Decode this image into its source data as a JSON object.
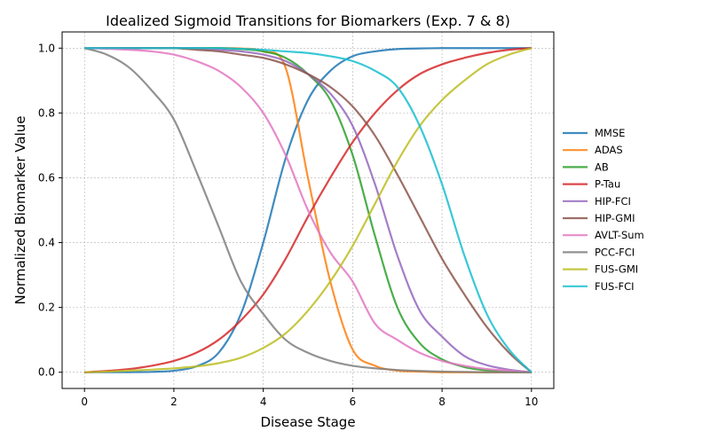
{
  "chart_data": {
    "type": "line",
    "title": "Idealized Sigmoid Transitions for Biomarkers (Exp. 7 & 8)",
    "xlabel": "Disease Stage",
    "ylabel": "Normalized Biomarker Value",
    "xlim": [
      -0.5,
      10.5
    ],
    "ylim": [
      -0.05,
      1.05
    ],
    "xticks": [
      0,
      2,
      4,
      6,
      8,
      10
    ],
    "xtick_labels": [
      "0",
      "2",
      "4",
      "6",
      "8",
      "10"
    ],
    "yticks": [
      0.0,
      0.2,
      0.4,
      0.6,
      0.8,
      1.0
    ],
    "ytick_labels": [
      "0.0",
      "0.2",
      "0.4",
      "0.6",
      "0.8",
      "1.0"
    ],
    "grid": true,
    "legend_position": "right",
    "x": [
      0,
      0.5,
      1,
      1.5,
      2,
      2.5,
      3,
      3.5,
      4,
      4.5,
      5,
      5.5,
      6,
      6.5,
      7,
      7.5,
      8,
      8.5,
      9,
      9.5,
      10
    ],
    "series": [
      {
        "name": "MMSE",
        "color": "#1f77b4",
        "values": [
          0.0,
          0.0001,
          0.0003,
          0.0012,
          0.0046,
          0.018,
          0.06,
          0.18,
          0.4,
          0.66,
          0.84,
          0.93,
          0.975,
          0.99,
          0.997,
          0.999,
          1.0,
          1.0,
          1.0,
          1.0,
          1.0
        ]
      },
      {
        "name": "ADAS",
        "color": "#ff7f0e",
        "values": [
          1.0,
          1.0,
          1.0,
          1.0,
          1.0,
          1.0,
          1.0,
          0.999,
          0.99,
          0.94,
          0.6,
          0.28,
          0.07,
          0.02,
          0.005,
          0.002,
          0.0,
          0.0,
          0.0,
          0.0,
          0.0
        ]
      },
      {
        "name": "AB",
        "color": "#2ca02c",
        "values": [
          1.0,
          1.0,
          1.0,
          1.0,
          1.0,
          1.0,
          1.0,
          0.997,
          0.99,
          0.97,
          0.92,
          0.84,
          0.67,
          0.42,
          0.2,
          0.09,
          0.04,
          0.016,
          0.006,
          0.002,
          0.0
        ]
      },
      {
        "name": "P-Tau",
        "color": "#d62728",
        "values": [
          0.0,
          0.004,
          0.01,
          0.02,
          0.035,
          0.06,
          0.1,
          0.16,
          0.24,
          0.35,
          0.48,
          0.6,
          0.71,
          0.8,
          0.87,
          0.92,
          0.95,
          0.97,
          0.985,
          0.995,
          1.0
        ]
      },
      {
        "name": "HIP-FCI",
        "color": "#9467bd",
        "values": [
          1.0,
          1.0,
          1.0,
          1.0,
          1.0,
          1.0,
          0.995,
          0.99,
          0.98,
          0.96,
          0.92,
          0.86,
          0.76,
          0.58,
          0.36,
          0.19,
          0.11,
          0.05,
          0.022,
          0.008,
          0.0
        ]
      },
      {
        "name": "HIP-GMI",
        "color": "#8c564b",
        "values": [
          1.0,
          1.0,
          1.0,
          1.0,
          1.0,
          0.995,
          0.99,
          0.98,
          0.97,
          0.95,
          0.92,
          0.88,
          0.82,
          0.73,
          0.61,
          0.48,
          0.35,
          0.24,
          0.14,
          0.06,
          0.0
        ]
      },
      {
        "name": "AVLT-Sum",
        "color": "#e377c2",
        "values": [
          1.0,
          0.998,
          0.995,
          0.99,
          0.98,
          0.96,
          0.93,
          0.88,
          0.8,
          0.67,
          0.5,
          0.37,
          0.28,
          0.15,
          0.1,
          0.06,
          0.035,
          0.02,
          0.01,
          0.005,
          0.0
        ]
      },
      {
        "name": "PCC-FCI",
        "color": "#7f7f7f",
        "values": [
          1.0,
          0.98,
          0.94,
          0.87,
          0.78,
          0.62,
          0.45,
          0.28,
          0.18,
          0.1,
          0.06,
          0.035,
          0.02,
          0.012,
          0.007,
          0.004,
          0.002,
          0.001,
          0.0,
          0.0,
          0.0
        ]
      },
      {
        "name": "FUS-GMI",
        "color": "#bcbd22",
        "values": [
          0.0,
          0.002,
          0.005,
          0.008,
          0.012,
          0.018,
          0.028,
          0.045,
          0.075,
          0.12,
          0.19,
          0.28,
          0.39,
          0.52,
          0.65,
          0.76,
          0.84,
          0.9,
          0.95,
          0.98,
          1.0
        ]
      },
      {
        "name": "FUS-FCI",
        "color": "#17becf",
        "values": [
          1.0,
          1.0,
          1.0,
          1.0,
          1.0,
          1.0,
          1.0,
          0.998,
          0.995,
          0.99,
          0.985,
          0.975,
          0.96,
          0.93,
          0.88,
          0.76,
          0.58,
          0.36,
          0.18,
          0.07,
          0.0
        ]
      }
    ]
  }
}
